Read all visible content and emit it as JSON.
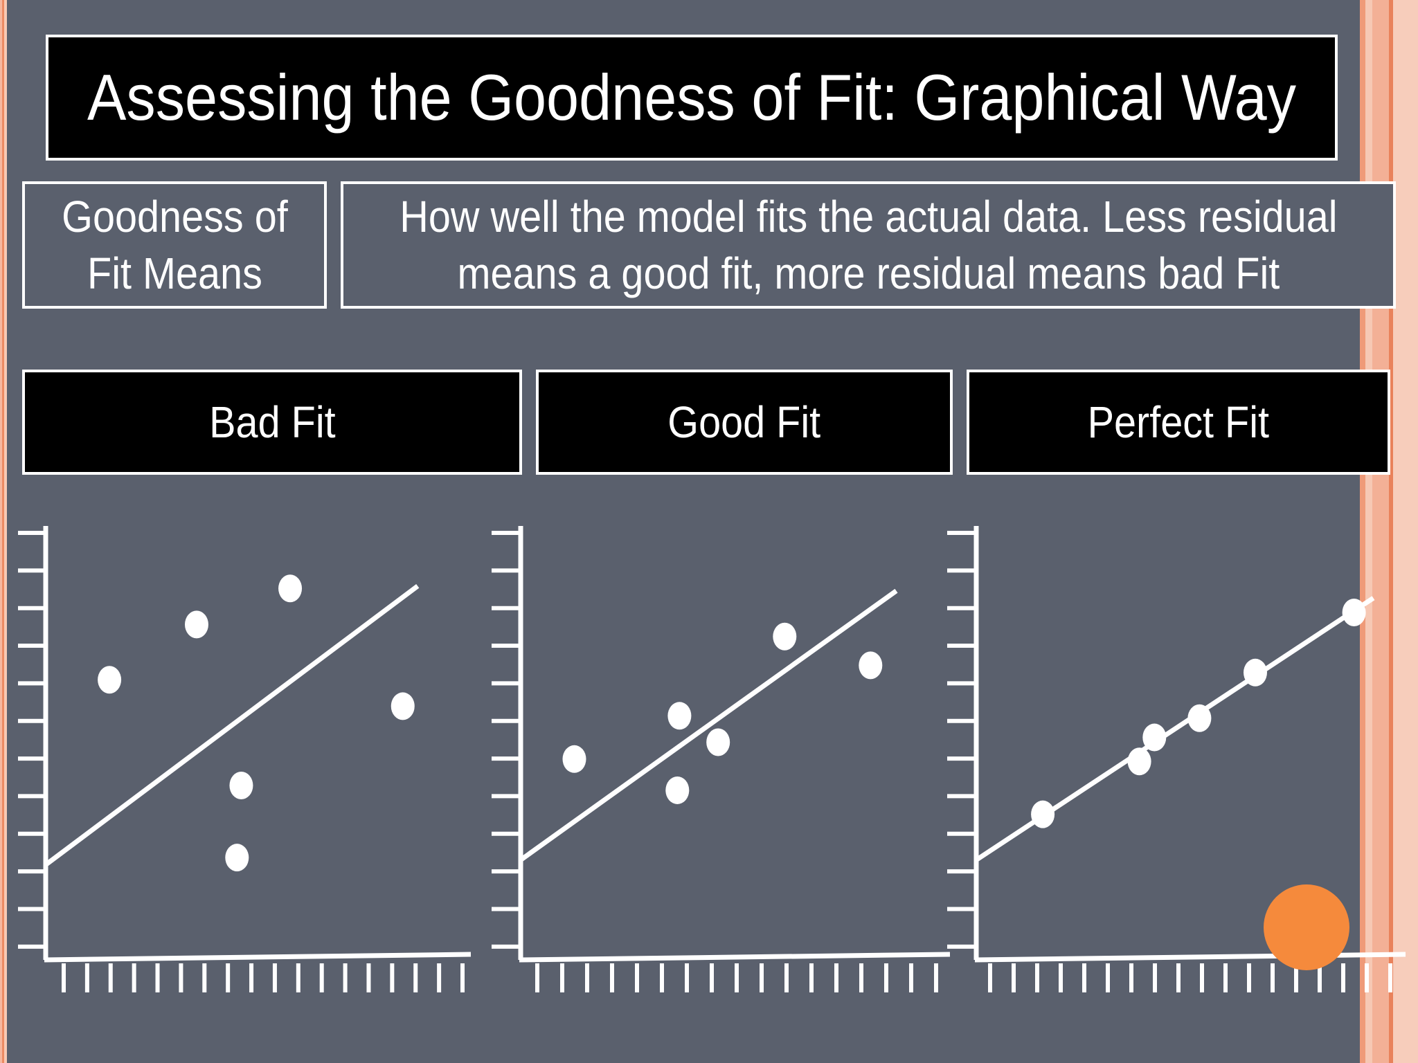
{
  "slide": {
    "title": "Assessing the Goodness of Fit: Graphical Way",
    "term": "Goodness of\nFit Means",
    "definition": "How well the model fits the actual data. Less residual\nmeans a good fit, more residual means bad Fit"
  },
  "colors": {
    "background": "#5a606d",
    "text": "#ffffff",
    "header_fill": "#000000",
    "accent_orange": "#f58a3c",
    "stripe_salmon": "#f3b096"
  },
  "panels": [
    {
      "label": "Bad Fit",
      "points": [
        [
          3,
          11.6
        ],
        [
          7.1,
          13.9
        ],
        [
          11.5,
          15.4
        ],
        [
          9,
          4.2
        ],
        [
          9.2,
          7.2
        ],
        [
          16.8,
          10.5
        ]
      ],
      "line": [
        [
          0,
          3.9
        ],
        [
          17.5,
          15.5
        ]
      ]
    },
    {
      "label": "Good Fit",
      "points": [
        [
          2.5,
          8.3
        ],
        [
          7.3,
          7
        ],
        [
          7.4,
          10.1
        ],
        [
          9.2,
          9
        ],
        [
          12.3,
          13.4
        ],
        [
          16.3,
          12.2
        ]
      ],
      "line": [
        [
          0,
          4.1
        ],
        [
          17.5,
          15.3
        ]
      ]
    },
    {
      "label": "Perfect Fit",
      "points": [
        [
          3.1,
          6
        ],
        [
          7.6,
          8.2
        ],
        [
          8.3,
          9.2
        ],
        [
          10.4,
          10
        ],
        [
          13,
          11.9
        ],
        [
          17.6,
          14.4
        ]
      ],
      "line": [
        [
          0,
          4.1
        ],
        [
          18.5,
          15
        ]
      ]
    }
  ]
}
